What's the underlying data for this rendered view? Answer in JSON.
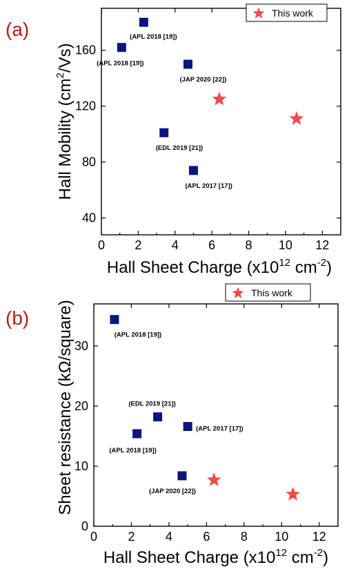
{
  "chart_data": [
    {
      "type": "scatter",
      "panel_label": "(a)",
      "xlabel": "Hall Sheet Charge (x10",
      "xlabel_exp": "12",
      "xlabel_unit": " cm",
      "xlabel_unit_exp": "-2",
      "xlabel_close": ")",
      "ylabel": "Hall Mobility (cm",
      "ylabel_exp": "2",
      "ylabel_tail": "/Vs)",
      "xlim": [
        0,
        13
      ],
      "ylim": [
        28,
        190
      ],
      "xticks": [
        0,
        2,
        4,
        6,
        8,
        10,
        12
      ],
      "yticks": [
        40,
        80,
        120,
        160
      ],
      "legend": "This work",
      "colors": {
        "square": "#0d137f",
        "star": "#ef4b4b"
      },
      "series": [
        {
          "marker": "square",
          "points": [
            {
              "x": 2.3,
              "y": 180,
              "label": "(APL 2018 [19])"
            },
            {
              "x": 1.1,
              "y": 162,
              "label": "(APL 2018 [19])"
            },
            {
              "x": 4.7,
              "y": 150,
              "label": "(JAP 2020 [22])"
            },
            {
              "x": 3.4,
              "y": 101,
              "label": "(EDL 2019 [21])"
            },
            {
              "x": 5.0,
              "y": 74,
              "label": "(APL 2017 [17])"
            }
          ]
        },
        {
          "name": "This work",
          "marker": "star",
          "points": [
            {
              "x": 6.4,
              "y": 125
            },
            {
              "x": 10.6,
              "y": 111
            }
          ]
        }
      ]
    },
    {
      "type": "scatter",
      "panel_label": "(b)",
      "xlabel": "Hall Sheet Charge (x10",
      "xlabel_exp": "12",
      "xlabel_unit": " cm",
      "xlabel_unit_exp": "-2",
      "xlabel_close": ")",
      "ylabel": "Sheet resistance (kΩ/square)",
      "xlim": [
        0,
        13
      ],
      "ylim": [
        0,
        37
      ],
      "xticks": [
        0,
        2,
        4,
        6,
        8,
        10,
        12
      ],
      "yticks": [
        0,
        10,
        20,
        30
      ],
      "legend": "This work",
      "colors": {
        "square": "#0d137f",
        "star": "#ef4b4b"
      },
      "series": [
        {
          "marker": "square",
          "points": [
            {
              "x": 1.1,
              "y": 34.4,
              "label": "(APL 2018 [19])"
            },
            {
              "x": 3.4,
              "y": 18.2,
              "label": "(EDL 2019 [21])"
            },
            {
              "x": 5.0,
              "y": 16.6,
              "label": "(APL 2017 [17])"
            },
            {
              "x": 2.3,
              "y": 15.4,
              "label": "(APL 2018 [19])"
            },
            {
              "x": 4.7,
              "y": 8.4,
              "label": "(JAP 2020 [22])"
            }
          ]
        },
        {
          "name": "This work",
          "marker": "star",
          "points": [
            {
              "x": 6.4,
              "y": 7.7
            },
            {
              "x": 10.6,
              "y": 5.3
            }
          ]
        }
      ]
    }
  ]
}
